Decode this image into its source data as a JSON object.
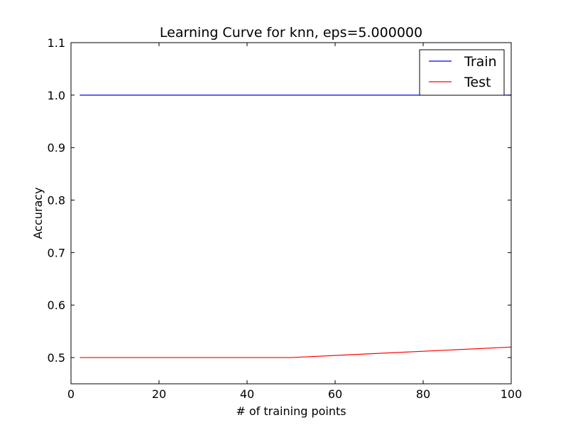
{
  "chart_data": {
    "type": "line",
    "title": "Learning Curve for knn, eps=5.000000",
    "xlabel": "# of training points",
    "ylabel": "Accuracy",
    "xlim": [
      0,
      100
    ],
    "ylim": [
      0.45,
      1.1
    ],
    "xticks": [
      0,
      20,
      40,
      60,
      80,
      100
    ],
    "xtick_labels": [
      "0",
      "20",
      "40",
      "60",
      "80",
      "100"
    ],
    "yticks": [
      0.5,
      0.6,
      0.7,
      0.8,
      0.9,
      1.0,
      1.1
    ],
    "ytick_labels": [
      "0.5",
      "0.6",
      "0.7",
      "0.8",
      "0.9",
      "1.0",
      "1.1"
    ],
    "grid": false,
    "legend": {
      "placement": "top-right"
    },
    "series": [
      {
        "name": "Train",
        "color": "#0000ff",
        "x": [
          2,
          50,
          100
        ],
        "y": [
          1.0,
          1.0,
          1.0
        ]
      },
      {
        "name": "Test",
        "color": "#ff0000",
        "x": [
          2,
          50,
          100
        ],
        "y": [
          0.5,
          0.5,
          0.52
        ]
      }
    ]
  }
}
